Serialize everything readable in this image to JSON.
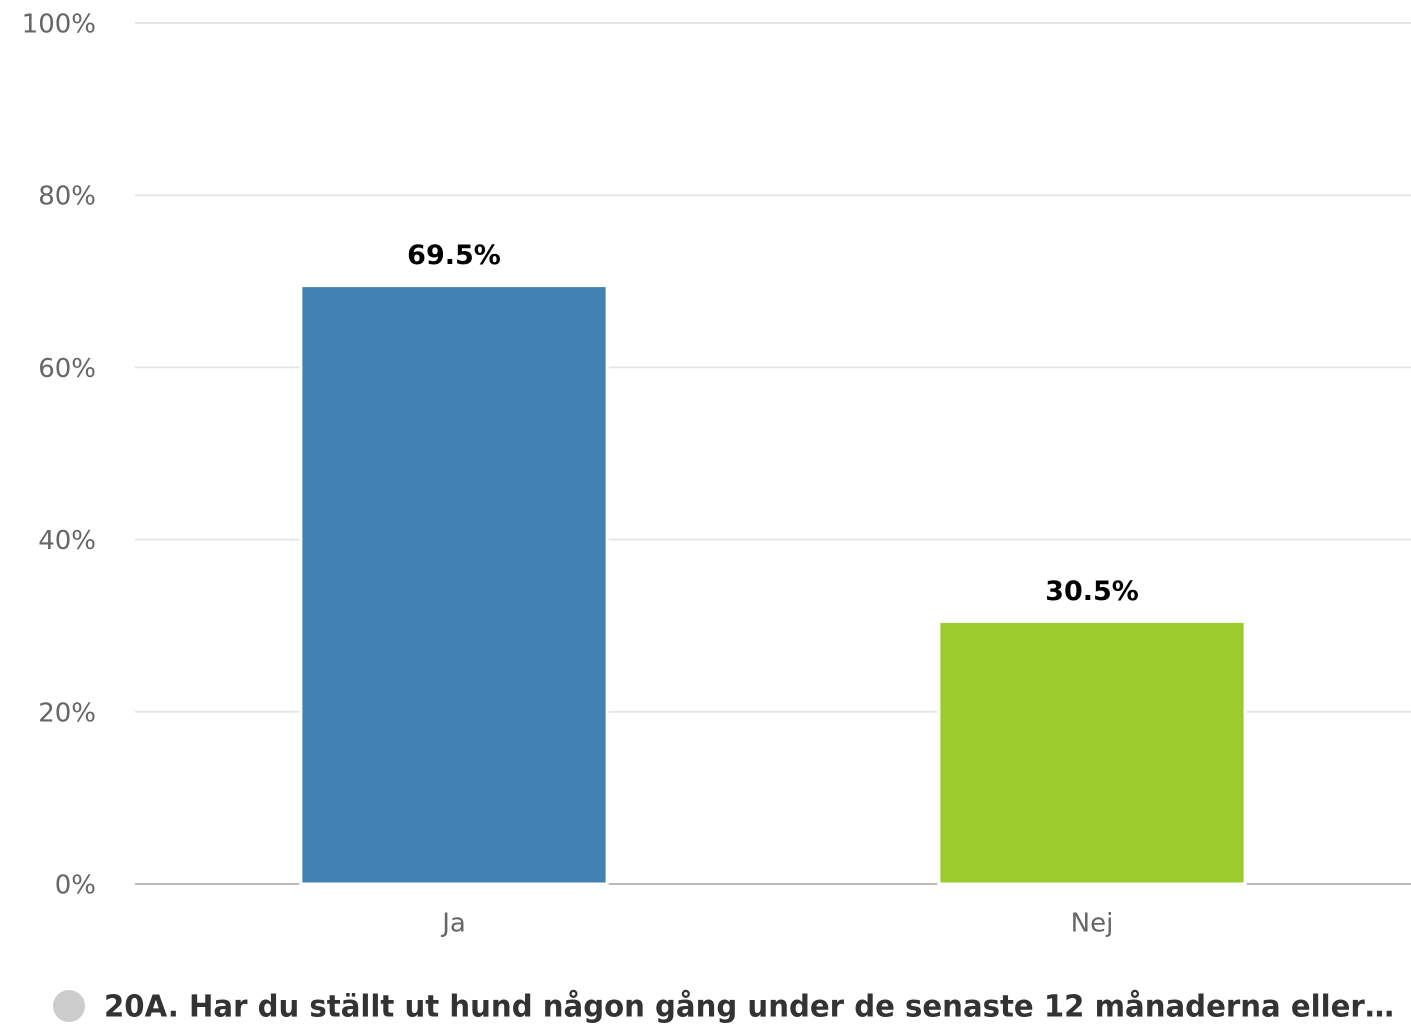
{
  "chart_data": {
    "type": "bar",
    "categories": [
      "Ja",
      "Nej"
    ],
    "series": [
      {
        "name": "20A. Har du ställt ut hund någon gång under de senaste 12 månaderna eller…",
        "values": [
          69.5,
          30.5
        ],
        "value_labels": [
          "69.5%",
          "30.5%"
        ],
        "colors": [
          "#4281b3",
          "#9bcb2d"
        ],
        "legend_color": "#cccccc"
      }
    ],
    "ylim": [
      0,
      100
    ],
    "yticks": [
      {
        "value": 0,
        "label": "0%"
      },
      {
        "value": 20,
        "label": "20%"
      },
      {
        "value": 40,
        "label": "40%"
      },
      {
        "value": 60,
        "label": "60%"
      },
      {
        "value": 80,
        "label": "80%"
      },
      {
        "value": 100,
        "label": "100%"
      }
    ],
    "grid": true,
    "legend": "bottom"
  }
}
